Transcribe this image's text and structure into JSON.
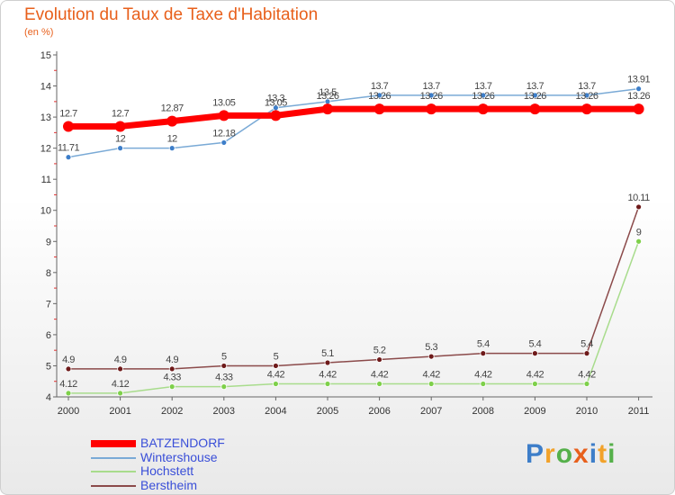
{
  "title": "Evolution du Taux de Taxe d'Habitation",
  "unit_label": "(en %)",
  "brand": [
    "P",
    "r",
    "o",
    "x",
    "i",
    "t",
    "i"
  ],
  "brand_colors": [
    "#3d7ec9",
    "#f2a22a",
    "#55b04a",
    "#e8601c",
    "#3d7ec9",
    "#f2a22a",
    "#55b04a"
  ],
  "chart_data": {
    "type": "line",
    "title": "Evolution du Taux de Taxe d'Habitation",
    "ylabel": "(en %)",
    "xlabel": "",
    "categories": [
      "2000",
      "2001",
      "2002",
      "2003",
      "2004",
      "2005",
      "2006",
      "2007",
      "2008",
      "2009",
      "2010",
      "2011"
    ],
    "ylim": [
      4,
      15
    ],
    "yticks": [
      "4",
      "5",
      "6",
      "7",
      "8",
      "9",
      "10",
      "11",
      "12",
      "13",
      "14",
      "15"
    ],
    "grid": false,
    "legend_position": "bottom-left",
    "series": [
      {
        "name": "BATZENDORF",
        "color": "#ff0000",
        "emphasis": true,
        "values": [
          12.7,
          12.7,
          12.87,
          13.05,
          13.05,
          13.26,
          13.26,
          13.26,
          13.26,
          13.26,
          13.26,
          13.26
        ],
        "labels": [
          "12.7",
          "12.7",
          "12.87",
          "13.05",
          "13.05",
          "13.26",
          "13.26",
          "13.26",
          "13.26",
          "13.26",
          "13.26",
          "13.26"
        ]
      },
      {
        "name": "Wintershouse",
        "color": "#7aaad6",
        "marker_color": "#3d7ec9",
        "values": [
          11.71,
          12,
          12,
          12.18,
          13.3,
          13.5,
          13.7,
          13.7,
          13.7,
          13.7,
          13.7,
          13.91
        ],
        "labels": [
          "11.71",
          "12",
          "12",
          "12.18",
          "13.3",
          "13.5",
          "13.7",
          "13.7",
          "13.7",
          "13.7",
          "13.7",
          "13.91"
        ]
      },
      {
        "name": "Hochstett",
        "color": "#a8dc8c",
        "marker_color": "#7ed04a",
        "values": [
          4.12,
          4.12,
          4.33,
          4.33,
          4.42,
          4.42,
          4.42,
          4.42,
          4.42,
          4.42,
          4.42,
          9
        ],
        "labels": [
          "4.12",
          "4.12",
          "4.33",
          "4.33",
          "4.42",
          "4.42",
          "4.42",
          "4.42",
          "4.42",
          "4.42",
          "4.42",
          "9"
        ]
      },
      {
        "name": "Berstheim",
        "color": "#8b4a4a",
        "marker_color": "#6e1a1a",
        "values": [
          4.9,
          4.9,
          4.9,
          5,
          5,
          5.1,
          5.2,
          5.3,
          5.4,
          5.4,
          5.4,
          10.11
        ],
        "labels": [
          "4.9",
          "4.9",
          "4.9",
          "5",
          "5",
          "5.1",
          "5.2",
          "5.3",
          "5.4",
          "5.4",
          "5.4",
          "10.11"
        ]
      }
    ]
  }
}
